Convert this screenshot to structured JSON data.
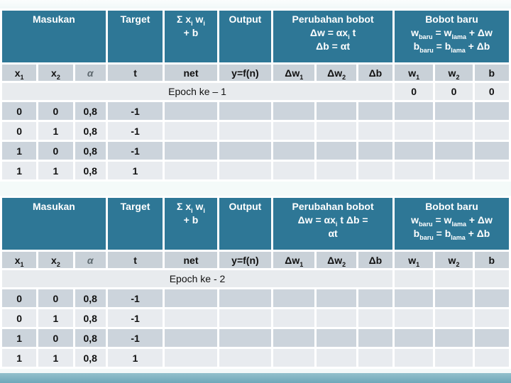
{
  "colors": {
    "header_teal": "#2e7796",
    "row_dark": "#ccd4dc",
    "row_light": "#e8ebef",
    "subheader_bg": "#c9d1d8",
    "epoch_row_bg": "#e8ebee",
    "bottom_band": "#7fb2c1",
    "header_text": "#ffffff",
    "body_text": "#111111"
  },
  "tables": [
    {
      "header": [
        {
          "lines": [
            [
              {
                "t": "Masukan"
              }
            ]
          ]
        },
        {
          "lines": [
            [
              {
                "t": "Target"
              }
            ]
          ]
        },
        {
          "lines": [
            [
              {
                "t": "Σ x"
              },
              {
                "s": "i"
              },
              {
                "t": " w"
              },
              {
                "s": "i"
              }
            ],
            [
              {
                "t": "+ b"
              }
            ]
          ]
        },
        {
          "lines": [
            [
              {
                "t": "Output"
              }
            ]
          ]
        },
        {
          "lines": [
            [
              {
                "t": "Perubahan bobot"
              }
            ],
            [
              {
                "t": "Δw = αx"
              },
              {
                "s": "i"
              },
              {
                "t": " t"
              }
            ],
            [
              {
                "t": "Δb = αt"
              }
            ]
          ]
        },
        {
          "lines": [
            [
              {
                "t": "Bobot baru"
              }
            ],
            [
              {
                "t": "w"
              },
              {
                "s": "baru"
              },
              {
                "t": " = w"
              },
              {
                "s": "lama"
              },
              {
                "t": " + Δw"
              }
            ],
            [
              {
                "t": "b"
              },
              {
                "s": "baru"
              },
              {
                "t": " = b"
              },
              {
                "s": "lama"
              },
              {
                "t": " + Δb"
              }
            ]
          ]
        }
      ],
      "subheader": [
        [
          {
            "t": "x"
          },
          {
            "s": "1"
          }
        ],
        [
          {
            "t": "x"
          },
          {
            "s": "2"
          }
        ],
        [
          {
            "t": "α",
            "c": "muted"
          }
        ],
        [
          {
            "t": "t"
          }
        ],
        [
          {
            "t": "net"
          }
        ],
        [
          {
            "t": "y=f(n)"
          }
        ],
        [
          {
            "t": "Δw"
          },
          {
            "s": "1"
          }
        ],
        [
          {
            "t": "Δw"
          },
          {
            "s": "2"
          }
        ],
        [
          {
            "t": "Δb"
          }
        ],
        [
          {
            "t": "w"
          },
          {
            "s": "1"
          }
        ],
        [
          {
            "t": "w"
          },
          {
            "s": "2"
          }
        ],
        [
          {
            "t": "b"
          }
        ]
      ],
      "epoch": {
        "label": "Epoch ke – 1",
        "values": [
          "0",
          "0",
          "0"
        ]
      },
      "rows": [
        [
          "0",
          "0",
          "0,8",
          "-1",
          "",
          "",
          "",
          "",
          "",
          "",
          "",
          ""
        ],
        [
          "0",
          "1",
          "0,8",
          "-1",
          "",
          "",
          "",
          "",
          "",
          "",
          "",
          ""
        ],
        [
          "1",
          "0",
          "0,8",
          "-1",
          "",
          "",
          "",
          "",
          "",
          "",
          "",
          ""
        ],
        [
          "1",
          "1",
          "0,8",
          "1",
          "",
          "",
          "",
          "",
          "",
          "",
          "",
          ""
        ]
      ]
    },
    {
      "header": [
        {
          "lines": [
            [
              {
                "t": "Masukan"
              }
            ]
          ]
        },
        {
          "lines": [
            [
              {
                "t": "Target"
              }
            ]
          ]
        },
        {
          "lines": [
            [
              {
                "t": "Σ x"
              },
              {
                "s": "i"
              },
              {
                "t": " w"
              },
              {
                "s": "i"
              }
            ],
            [
              {
                "t": "+ b"
              }
            ]
          ]
        },
        {
          "lines": [
            [
              {
                "t": "Output"
              }
            ]
          ]
        },
        {
          "lines": [
            [
              {
                "t": "Perubahan bobot"
              }
            ],
            [
              {
                "t": "Δw = αx"
              },
              {
                "s": "i"
              },
              {
                "t": " t   Δb ="
              }
            ],
            [
              {
                "t": "αt"
              }
            ]
          ]
        },
        {
          "lines": [
            [
              {
                "t": "Bobot baru"
              }
            ],
            [
              {
                "t": "w"
              },
              {
                "s": "baru"
              },
              {
                "t": " = w"
              },
              {
                "s": "lama"
              },
              {
                "t": " + Δw"
              }
            ],
            [
              {
                "t": "b"
              },
              {
                "s": "baru"
              },
              {
                "t": " = b"
              },
              {
                "s": "lama"
              },
              {
                "t": " + Δb"
              }
            ]
          ]
        }
      ],
      "subheader": [
        [
          {
            "t": "x"
          },
          {
            "s": "1"
          }
        ],
        [
          {
            "t": "x"
          },
          {
            "s": "2"
          }
        ],
        [
          {
            "t": "α",
            "c": "muted"
          }
        ],
        [
          {
            "t": "t"
          }
        ],
        [
          {
            "t": "net"
          }
        ],
        [
          {
            "t": "y=f(n)"
          }
        ],
        [
          {
            "t": "Δw"
          },
          {
            "s": "1"
          }
        ],
        [
          {
            "t": "Δw"
          },
          {
            "s": "2"
          }
        ],
        [
          {
            "t": "Δb"
          }
        ],
        [
          {
            "t": "w"
          },
          {
            "s": "1"
          }
        ],
        [
          {
            "t": "w"
          },
          {
            "s": "2"
          }
        ],
        [
          {
            "t": "b"
          }
        ]
      ],
      "epoch": {
        "label": "Epoch ke - 2",
        "values": [
          "",
          "",
          ""
        ]
      },
      "rows": [
        [
          "0",
          "0",
          "0,8",
          "-1",
          "",
          "",
          "",
          "",
          "",
          "",
          "",
          ""
        ],
        [
          "0",
          "1",
          "0,8",
          "-1",
          "",
          "",
          "",
          "",
          "",
          "",
          "",
          ""
        ],
        [
          "1",
          "0",
          "0,8",
          "-1",
          "",
          "",
          "",
          "",
          "",
          "",
          "",
          ""
        ],
        [
          "1",
          "1",
          "0,8",
          "1",
          "",
          "",
          "",
          "",
          "",
          "",
          "",
          ""
        ]
      ]
    }
  ]
}
